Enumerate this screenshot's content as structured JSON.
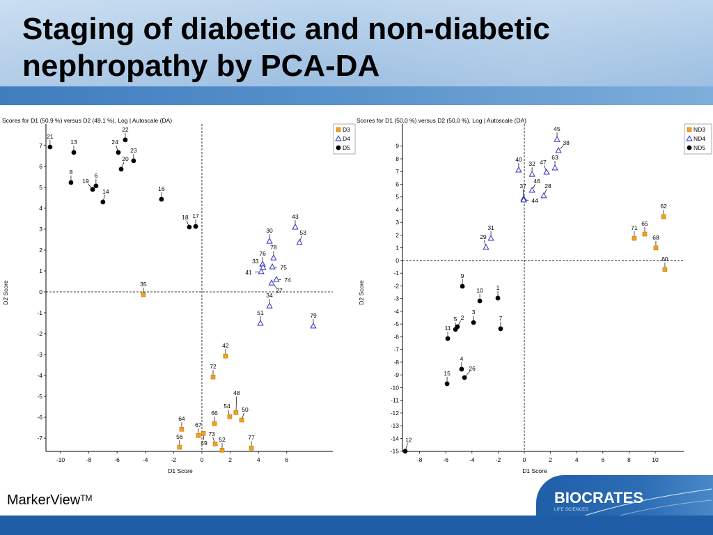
{
  "slide": {
    "title_line1": "Staging of diabetic and non-diabetic",
    "title_line2": "nephropathy by PCA-DA"
  },
  "footer": {
    "product": "MarkerView",
    "product_mark": "TM",
    "brand": "BIOCRATES",
    "brand_tagline": "LIFE SCIENCES",
    "brand_color": "#1f5ea6"
  },
  "chart_data": [
    {
      "type": "scatter",
      "title": "Scores for D1 (50,9 %) versus D2 (49,1 %), Log | Autoscale (DA)",
      "xlabel": "D1 Score",
      "ylabel": "D2 Score",
      "xlim": [
        -11.03,
        9.26
      ],
      "ylim": [
        -7.63,
        8.03
      ],
      "xticks": [
        -10,
        -8,
        -6,
        -4,
        -2,
        0,
        2,
        4,
        6
      ],
      "yticks": [
        7,
        6,
        5,
        4,
        3,
        2,
        1,
        0,
        -1,
        -2,
        -3,
        -4,
        -5,
        -6,
        -7
      ],
      "reference_lines": {
        "x": 0,
        "y": 0
      },
      "grid": false,
      "legend": "right",
      "series": [
        {
          "name": "D3",
          "color": "#f3a11e",
          "marker": "square",
          "points": [
            {
              "label": "35",
              "x": -4.14,
              "y": -0.13
            },
            {
              "label": "42",
              "x": 1.67,
              "y": -3.07
            },
            {
              "label": "72",
              "x": 0.79,
              "y": -4.07
            },
            {
              "label": "48",
              "x": 2.41,
              "y": -5.77
            },
            {
              "label": "54",
              "x": 1.97,
              "y": -5.97
            },
            {
              "label": "50",
              "x": 2.81,
              "y": -6.13
            },
            {
              "label": "66",
              "x": 0.89,
              "y": -6.3
            },
            {
              "label": "64",
              "x": -1.43,
              "y": -6.57
            },
            {
              "label": "67",
              "x": -0.25,
              "y": -6.87
            },
            {
              "label": "49",
              "x": 0.1,
              "y": -6.77
            },
            {
              "label": "73",
              "x": 0.94,
              "y": -7.27
            },
            {
              "label": "52",
              "x": 1.43,
              "y": -7.57
            },
            {
              "label": "56",
              "x": -1.58,
              "y": -7.43
            },
            {
              "label": "77",
              "x": 3.5,
              "y": -7.47
            }
          ]
        },
        {
          "name": "D4",
          "color": "#2f2fc4",
          "marker": "triangle-open",
          "points": [
            {
              "label": "43",
              "x": 6.6,
              "y": 3.1
            },
            {
              "label": "53",
              "x": 6.9,
              "y": 2.37
            },
            {
              "label": "30",
              "x": 4.78,
              "y": 2.43
            },
            {
              "label": "78",
              "x": 5.07,
              "y": 1.63
            },
            {
              "label": "76",
              "x": 4.29,
              "y": 1.33
            },
            {
              "label": "33",
              "x": 4.33,
              "y": 1.17
            },
            {
              "label": "41",
              "x": 4.19,
              "y": 0.97
            },
            {
              "label": "75",
              "x": 4.98,
              "y": 1.2
            },
            {
              "label": "74",
              "x": 5.27,
              "y": 0.6
            },
            {
              "label": "27",
              "x": 4.93,
              "y": 0.43
            },
            {
              "label": "34",
              "x": 4.78,
              "y": -0.67
            },
            {
              "label": "51",
              "x": 4.14,
              "y": -1.5
            },
            {
              "label": "79",
              "x": 7.88,
              "y": -1.63
            }
          ]
        },
        {
          "name": "D5",
          "color": "#000000",
          "marker": "circle",
          "points": [
            {
              "label": "21",
              "x": -10.74,
              "y": 6.93
            },
            {
              "label": "13",
              "x": -9.06,
              "y": 6.67
            },
            {
              "label": "22",
              "x": -5.42,
              "y": 7.27
            },
            {
              "label": "24",
              "x": -5.91,
              "y": 6.67
            },
            {
              "label": "23",
              "x": -4.83,
              "y": 6.27
            },
            {
              "label": "20",
              "x": -5.71,
              "y": 5.87
            },
            {
              "label": "8",
              "x": -9.26,
              "y": 5.23
            },
            {
              "label": "6",
              "x": -7.49,
              "y": 5.07
            },
            {
              "label": "19",
              "x": -7.73,
              "y": 4.9
            },
            {
              "label": "14",
              "x": -7.0,
              "y": 4.3
            },
            {
              "label": "16",
              "x": -2.86,
              "y": 4.43
            },
            {
              "label": "18",
              "x": -0.89,
              "y": 3.1
            },
            {
              "label": "17",
              "x": -0.44,
              "y": 3.13
            }
          ]
        }
      ]
    },
    {
      "type": "scatter",
      "title": "Scores for D1 (50,0 %) versus D2 (50,0 %), Log | Autoscale (DA)",
      "xlabel": "D1 Score",
      "ylabel": "D2 Score",
      "xlim": [
        -9.31,
        12.18
      ],
      "ylim": [
        -15.02,
        10.74
      ],
      "xticks": [
        -8,
        -6,
        -4,
        -2,
        0,
        2,
        4,
        6,
        8,
        10
      ],
      "yticks": [
        9,
        8,
        7,
        6,
        5,
        4,
        3,
        2,
        1,
        0,
        -1,
        -2,
        -3,
        -4,
        -5,
        -6,
        -7,
        -8,
        -9,
        -10,
        -11,
        -12,
        -13,
        -14,
        -15
      ],
      "reference_lines": {
        "x": 0,
        "y": 0
      },
      "grid": false,
      "legend": "right",
      "series": [
        {
          "name": "ND3",
          "color": "#f3a11e",
          "marker": "square",
          "points": [
            {
              "label": "62",
              "x": 10.64,
              "y": 3.45
            },
            {
              "label": "65",
              "x": 9.2,
              "y": 2.08
            },
            {
              "label": "71",
              "x": 8.4,
              "y": 1.75
            },
            {
              "label": "68",
              "x": 10.05,
              "y": 0.99
            },
            {
              "label": "60",
              "x": 10.74,
              "y": -0.71
            }
          ]
        },
        {
          "name": "ND4",
          "color": "#2f2fc4",
          "marker": "triangle-open",
          "points": [
            {
              "label": "45",
              "x": 2.5,
              "y": 9.53
            },
            {
              "label": "38",
              "x": 2.61,
              "y": 8.66
            },
            {
              "label": "63",
              "x": 2.34,
              "y": 7.29
            },
            {
              "label": "47",
              "x": 1.7,
              "y": 6.96
            },
            {
              "label": "32",
              "x": 0.59,
              "y": 6.79
            },
            {
              "label": "40",
              "x": -0.43,
              "y": 7.12
            },
            {
              "label": "46",
              "x": 0.59,
              "y": 5.53
            },
            {
              "label": "28",
              "x": 1.49,
              "y": 5.1
            },
            {
              "label": "37",
              "x": -0.05,
              "y": 4.88
            },
            {
              "label": "44",
              "x": -0.05,
              "y": 4.77
            },
            {
              "label": "31",
              "x": -2.55,
              "y": 1.75
            },
            {
              "label": "29",
              "x": -2.93,
              "y": 1.04
            }
          ]
        },
        {
          "name": "ND5",
          "color": "#000000",
          "marker": "circle",
          "points": [
            {
              "label": "9",
              "x": -4.73,
              "y": -2.03
            },
            {
              "label": "10",
              "x": -3.4,
              "y": -3.18
            },
            {
              "label": "1",
              "x": -2.02,
              "y": -2.96
            },
            {
              "label": "3",
              "x": -3.88,
              "y": -4.88
            },
            {
              "label": "7",
              "x": -1.81,
              "y": -5.37
            },
            {
              "label": "5",
              "x": -5.26,
              "y": -5.42
            },
            {
              "label": "2",
              "x": -5.11,
              "y": -5.21
            },
            {
              "label": "11",
              "x": -5.85,
              "y": -6.14
            },
            {
              "label": "4",
              "x": -4.79,
              "y": -8.55
            },
            {
              "label": "26",
              "x": -4.57,
              "y": -9.21
            },
            {
              "label": "15",
              "x": -5.9,
              "y": -9.7
            },
            {
              "label": "12",
              "x": -9.1,
              "y": -15.0
            }
          ]
        }
      ]
    }
  ]
}
